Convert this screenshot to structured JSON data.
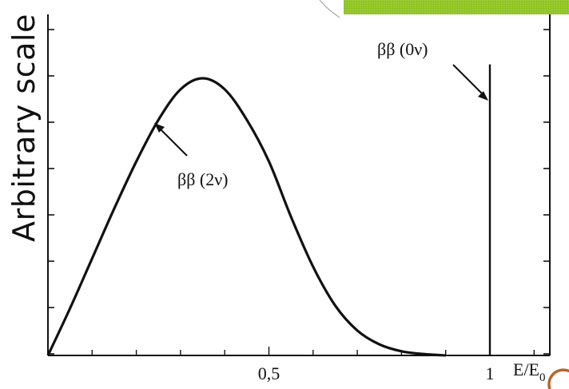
{
  "chart_data": {
    "type": "line",
    "title": "",
    "xlabel": "E/E",
    "xlabel_subscript": "0",
    "ylabel": "Arbitrary scale",
    "xlim": [
      0,
      1.1
    ],
    "ylim": [
      0,
      1.08
    ],
    "x_ticks": [
      {
        "value": 0.5,
        "label": "0,5"
      },
      {
        "value": 1,
        "label": "1"
      }
    ],
    "series": [
      {
        "name": "ββ (2ν)",
        "x": [
          0.0,
          0.05,
          0.1,
          0.15,
          0.2,
          0.25,
          0.3,
          0.35,
          0.4,
          0.45,
          0.5,
          0.55,
          0.6,
          0.65,
          0.7,
          0.75,
          0.8,
          0.85,
          0.9
        ],
        "y": [
          0.0,
          0.17,
          0.35,
          0.53,
          0.7,
          0.85,
          0.96,
          1.0,
          0.96,
          0.85,
          0.7,
          0.5,
          0.32,
          0.18,
          0.09,
          0.04,
          0.015,
          0.005,
          0.0
        ]
      },
      {
        "name": "ββ (0ν)",
        "type": "spike",
        "x": 1.0,
        "y": 1.05
      }
    ],
    "annotations": [
      {
        "text": "ββ (2ν)",
        "target_x": 0.22
      },
      {
        "text": "ββ (0ν)",
        "target_x": 1.0
      }
    ],
    "grid": false,
    "legend": "none"
  },
  "decor": {
    "accent_color": "#8dc21f",
    "accent_dark": "#6da515"
  }
}
